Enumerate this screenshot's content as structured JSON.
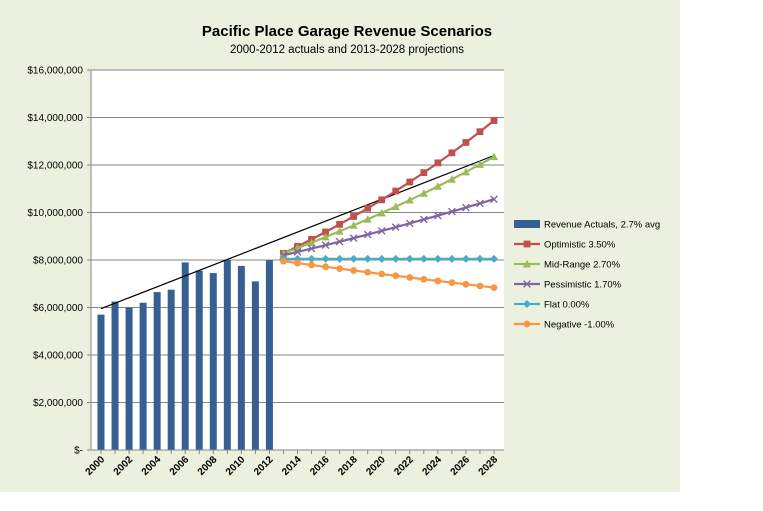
{
  "chart_data": {
    "type": "bar",
    "title": "Pacific Place Garage Revenue Scenarios",
    "subtitle": "2000-2012 actuals and 2013-2028 projections",
    "xlabel": "",
    "ylabel": "",
    "ylim": [
      0,
      16000000
    ],
    "y_ticks": [
      0,
      2000000,
      4000000,
      6000000,
      8000000,
      10000000,
      12000000,
      14000000,
      16000000
    ],
    "y_tick_labels": [
      "$-",
      "$2,000,000",
      "$4,000,000",
      "$6,000,000",
      "$8,000,000",
      "$10,000,000",
      "$12,000,000",
      "$14,000,000",
      "$16,000,000"
    ],
    "x_range": [
      2000,
      2028
    ],
    "x_tick_labels": [
      "2000",
      "2002",
      "2004",
      "2006",
      "2008",
      "2010",
      "2012",
      "2014",
      "2016",
      "2018",
      "2020",
      "2022",
      "2024",
      "2026",
      "2028"
    ],
    "grid": true,
    "legend_position": "right",
    "bars": {
      "name": "Revenue Actuals, 2.7% avg",
      "color": "#376092",
      "x": [
        2000,
        2001,
        2002,
        2003,
        2004,
        2005,
        2006,
        2007,
        2008,
        2009,
        2010,
        2011,
        2012
      ],
      "values": [
        5700000,
        6250000,
        6000000,
        6200000,
        6650000,
        6750000,
        7900000,
        7550000,
        7450000,
        8000000,
        7750000,
        7100000,
        8000000
      ]
    },
    "trendline": {
      "color": "#000000",
      "x": [
        2000,
        2028
      ],
      "values": [
        5950000,
        12400000
      ]
    },
    "series": [
      {
        "name": "Optimistic  3.50%",
        "color": "#c0504d",
        "marker": "square",
        "start": 2013,
        "end": 2028,
        "base": 8280000,
        "rate": 0.035
      },
      {
        "name": "Mid-Range  2.70%",
        "color": "#9bbb59",
        "marker": "triangle",
        "start": 2013,
        "end": 2028,
        "base": 8280000,
        "rate": 0.027
      },
      {
        "name": "Pessimistic  1.70%",
        "color": "#8064a2",
        "marker": "x",
        "start": 2013,
        "end": 2028,
        "base": 8200000,
        "rate": 0.017
      },
      {
        "name": "Flat  0.00%",
        "color": "#4bacc6",
        "marker": "diamond",
        "start": 2013,
        "end": 2028,
        "base": 8050000,
        "rate": 0.0
      },
      {
        "name": "Negative  -1.00%",
        "color": "#f79646",
        "marker": "circle",
        "start": 2013,
        "end": 2028,
        "base": 7950000,
        "rate": -0.01
      }
    ]
  }
}
